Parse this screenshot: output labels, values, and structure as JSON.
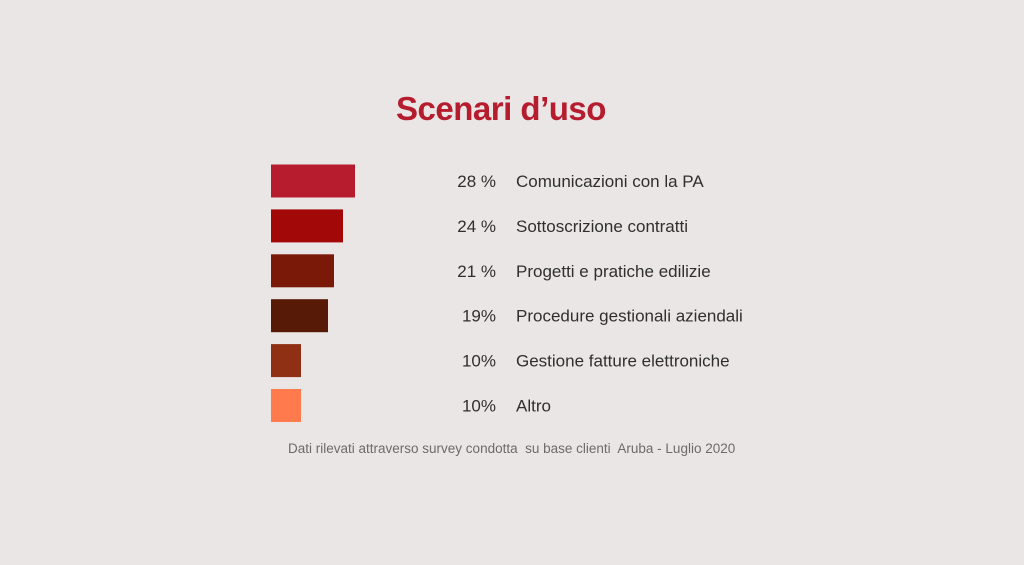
{
  "chart_data": {
    "type": "bar",
    "orientation": "horizontal",
    "title": "Scenari d’uso",
    "categories": [
      "Comunicazioni con la PA",
      "Sottoscrizione contratti",
      "Progetti e pratiche edilizie",
      "Procedure gestionali aziendali",
      "Gestione fatture elettroniche",
      "Altro"
    ],
    "values": [
      28,
      24,
      21,
      19,
      10,
      10
    ],
    "value_labels": [
      "28 %",
      "24 %",
      "21 %",
      "19%",
      "10%",
      "10%"
    ],
    "colors": [
      "#b71c2e",
      "#a30808",
      "#7a1908",
      "#561a07",
      "#8f2f14",
      "#ff7a4d"
    ],
    "xlabel": "",
    "ylabel": "",
    "grid": false,
    "legend": "none",
    "note": "Dati rilevati attraverso survey condotta  su base clienti  Aruba - Luglio 2020"
  }
}
